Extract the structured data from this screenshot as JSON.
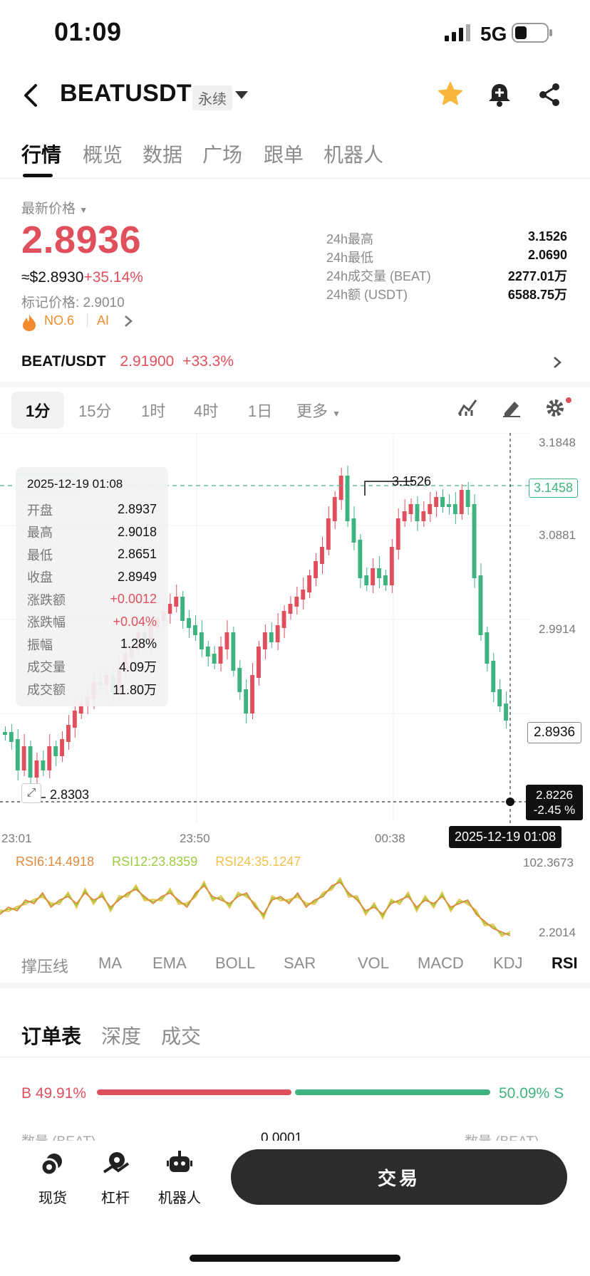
{
  "status": {
    "time": "01:09",
    "network": "5G"
  },
  "header": {
    "pair": "BEATUSDT",
    "contract_type": "永续"
  },
  "tabs": [
    "行情",
    "概览",
    "数据",
    "广场",
    "跟单",
    "机器人"
  ],
  "price": {
    "label": "最新价格",
    "last": "2.8936",
    "usd_approx": "≈$2.8930",
    "change_pct": "+35.14%",
    "mark_price": "标记价格: 2.9010",
    "rank": "NO.6",
    "tag": "AI"
  },
  "stats": [
    {
      "k": "24h最高",
      "v": "3.1526"
    },
    {
      "k": "24h最低",
      "v": "2.0690"
    },
    {
      "k": "24h成交量 (BEAT)",
      "v": "2277.01万"
    },
    {
      "k": "24h额 (USDT)",
      "v": "6588.75万"
    }
  ],
  "spot": {
    "pair": "BEAT/USDT",
    "price": "2.91900",
    "change": "+33.3%"
  },
  "intervals": [
    "1分",
    "15分",
    "1时",
    "4时",
    "1日",
    "更多"
  ],
  "tooltip": {
    "date": "2025-12-19 01:08",
    "rows": [
      {
        "k": "开盘",
        "v": "2.8937",
        "color": "#111111"
      },
      {
        "k": "最高",
        "v": "2.9018",
        "color": "#111111"
      },
      {
        "k": "最低",
        "v": "2.8651",
        "color": "#111111"
      },
      {
        "k": "收盘",
        "v": "2.8949",
        "color": "#111111"
      },
      {
        "k": "涨跌额",
        "v": "+0.0012",
        "color": "#e0505c"
      },
      {
        "k": "涨跌幅",
        "v": "+0.04%",
        "color": "#e0505c"
      },
      {
        "k": "振幅",
        "v": "1.28%",
        "color": "#111111"
      },
      {
        "k": "成交量",
        "v": "4.09万",
        "color": "#111111"
      },
      {
        "k": "成交额",
        "v": "11.80万",
        "color": "#111111"
      }
    ]
  },
  "chart": {
    "y_axis": [
      "3.1848",
      "3.0881",
      "2.9914"
    ],
    "high_marker": "3.1526",
    "low_marker": "2.8303",
    "dashed_level": "3.1458",
    "last_price_tag": "2.8936",
    "cursor_price": "2.8226",
    "cursor_change": "-2.45 %",
    "cursor_time": "2025-12-19 01:08",
    "x_axis": [
      "23:01",
      "23:50",
      "00:38"
    ]
  },
  "rsi": {
    "rsi6": "RSI6:14.4918",
    "rsi12": "RSI12:23.8359",
    "rsi24": "RSI24:35.1247",
    "max": "102.3673",
    "min": "2.2014",
    "colors": {
      "rsi6": "#e08a3c",
      "rsi12": "#9ccc3e",
      "rsi24": "#f2c14e"
    }
  },
  "indicators": [
    "撑压线",
    "MA",
    "EMA",
    "BOLL",
    "SAR",
    "VOL",
    "MACD",
    "KDJ",
    "RSI"
  ],
  "orderbook": {
    "tabs": [
      "订单表",
      "深度",
      "成交"
    ],
    "buy_label": "B",
    "buy_pct": "49.91%",
    "sell_pct": "50.09%",
    "sell_label": "S",
    "buy_ratio": 0.4991,
    "col_left": "数量 (BEAT)",
    "col_mid": "0.0001",
    "col_right": "数量 (BEAT)"
  },
  "bottom_nav": [
    "现货",
    "杠杆",
    "机器人"
  ],
  "trade_button": "交易",
  "colors": {
    "up": "#e0505c",
    "down": "#3fb37f"
  }
}
